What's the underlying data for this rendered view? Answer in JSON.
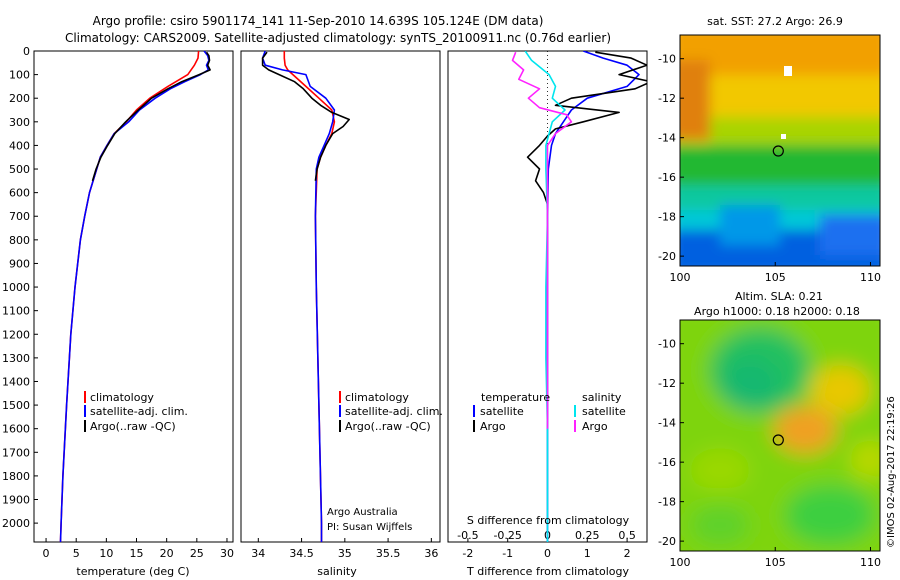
{
  "title": {
    "line1": "Argo profile: csiro 5901174_141 11-Sep-2010 14.639S 105.124E (DM data)",
    "line2": "Climatology: CARS2009. Satellite-adjusted climatology: synTS_20100911.nc (0.76d earlier)"
  },
  "colors": {
    "climatology": "#ff0000",
    "satellite": "#0000ff",
    "argo": "#000000",
    "sal_satellite": "#00e5ee",
    "sal_argo": "#ff22ff"
  },
  "chart_data": [
    {
      "type": "line",
      "id": "temperature",
      "xlabel": "temperature (deg C)",
      "ylabel": "",
      "xlim": [
        -2,
        31
      ],
      "ylim": [
        2080,
        0
      ],
      "xticks": [
        0,
        5,
        10,
        15,
        20,
        25,
        30
      ],
      "yticks": [
        0,
        100,
        200,
        300,
        400,
        500,
        600,
        700,
        800,
        900,
        1000,
        1100,
        1200,
        1300,
        1400,
        1500,
        1600,
        1700,
        1800,
        1900,
        2000
      ],
      "legend": [
        "climatology",
        "satellite-adj. clim.",
        "Argo(..raw -QC)"
      ],
      "series": [
        {
          "name": "climatology",
          "depth": [
            0,
            30,
            60,
            100,
            150,
            200,
            250,
            300,
            350,
            400,
            450,
            500,
            600,
            700,
            800,
            1000,
            1200,
            1500,
            1800,
            2000,
            2080
          ],
          "values": [
            25.3,
            25.2,
            24.6,
            23.5,
            20.2,
            17.2,
            15,
            13.3,
            11.3,
            10.1,
            9,
            8.4,
            7.2,
            6.4,
            5.7,
            4.8,
            4.1,
            3.4,
            2.8,
            2.5,
            2.4
          ]
        },
        {
          "name": "satellite-adj. clim.",
          "depth": [
            0,
            20,
            40,
            60,
            80,
            100,
            130,
            160,
            200,
            250,
            300,
            350,
            400,
            450,
            500,
            600,
            700,
            800,
            1000,
            1200,
            1500,
            1800,
            2000,
            2080
          ],
          "values": [
            26.2,
            26.8,
            27,
            26.6,
            26.9,
            25.6,
            23,
            20.6,
            18.1,
            15.5,
            13.7,
            11.3,
            10.1,
            9,
            8.4,
            7.2,
            6.4,
            5.7,
            4.8,
            4.1,
            3.4,
            2.8,
            2.5,
            2.4
          ]
        },
        {
          "name": "Argo(..raw -QC)",
          "depth": [
            5,
            20,
            40,
            60,
            80,
            100,
            130,
            160,
            200,
            250,
            300,
            350,
            400,
            450,
            500,
            550
          ],
          "values": [
            26.6,
            27,
            27.1,
            26.8,
            27.2,
            25.4,
            22.5,
            20.2,
            17.5,
            15.3,
            13.2,
            11.4,
            10.2,
            9.1,
            8.3,
            7.7
          ]
        }
      ]
    },
    {
      "type": "line",
      "id": "salinity",
      "xlabel": "salinity",
      "xlim": [
        33.8,
        36.1
      ],
      "ylim": [
        2080,
        0
      ],
      "xticks": [
        "34",
        "34.5",
        "35",
        "35.5",
        "36"
      ],
      "legend": [
        "climatology",
        "satellite-adj. clim.",
        "Argo(..raw -QC)"
      ],
      "annotation": [
        "Argo Australia",
        "PI: Susan Wijffels"
      ],
      "series": [
        {
          "name": "climatology",
          "depth": [
            0,
            30,
            60,
            80,
            100,
            150,
            200,
            250,
            300,
            350,
            400,
            450,
            500,
            700,
            1000,
            1500,
            2000,
            2080
          ],
          "values": [
            34.3,
            34.3,
            34.31,
            34.34,
            34.4,
            34.55,
            34.7,
            34.85,
            34.88,
            34.85,
            34.78,
            34.72,
            34.68,
            34.66,
            34.67,
            34.7,
            34.73,
            34.73
          ]
        },
        {
          "name": "satellite-adj. clim.",
          "depth": [
            0,
            30,
            60,
            80,
            100,
            150,
            200,
            250,
            300,
            350,
            400,
            450,
            500,
            700,
            1000,
            1500,
            2000,
            2080
          ],
          "values": [
            34.08,
            34.05,
            34.08,
            34.28,
            34.55,
            34.6,
            34.78,
            34.88,
            34.86,
            34.82,
            34.76,
            34.7,
            34.67,
            34.66,
            34.67,
            34.7,
            34.73,
            34.73
          ]
        },
        {
          "name": "Argo(..raw -QC)",
          "depth": [
            5,
            30,
            60,
            80,
            100,
            130,
            160,
            200,
            230,
            260,
            290,
            320,
            350,
            400,
            450,
            500,
            550
          ],
          "values": [
            34.1,
            34.05,
            34.05,
            34.12,
            34.24,
            34.42,
            34.52,
            34.62,
            34.72,
            34.85,
            35.05,
            34.98,
            34.86,
            34.78,
            34.72,
            34.68,
            34.66
          ]
        }
      ]
    },
    {
      "type": "line",
      "id": "differences",
      "xlabel": "T difference from climatology",
      "xlabel_top": "S difference from climatology",
      "xlim": [
        -2.5,
        2.5
      ],
      "ylim": [
        2080,
        0
      ],
      "xticks_bottom": [
        "-2",
        "-1",
        "0",
        "1",
        "2"
      ],
      "xticks_top": [
        "-0.5",
        "-0.25",
        "0",
        "0.25",
        "0.5"
      ],
      "legend_groups": {
        "temperature": [
          "satellite",
          "Argo"
        ],
        "salinity": [
          "satellite",
          "Argo"
        ]
      },
      "series": [
        {
          "name": "temperature satellite",
          "depth": [
            0,
            30,
            60,
            100,
            150,
            200,
            250,
            300,
            350,
            400,
            500,
            700,
            1000,
            1500,
            2000,
            2080
          ],
          "values": [
            0.9,
            1.4,
            2,
            2.3,
            2,
            1,
            0.6,
            0.4,
            0.2,
            0.1,
            0.02,
            0,
            0,
            0,
            0,
            0
          ]
        },
        {
          "name": "temperature Argo",
          "depth": [
            5,
            30,
            60,
            100,
            130,
            160,
            200,
            230,
            260,
            300,
            330,
            360,
            400,
            450,
            500,
            550,
            600,
            650
          ],
          "values": [
            1.2,
            2.1,
            2.5,
            1.8,
            2.6,
            2.2,
            0.6,
            0.2,
            1.8,
            0.9,
            0.2,
            0,
            -0.2,
            -0.5,
            -0.2,
            -0.3,
            -0.1,
            0
          ]
        },
        {
          "name": "salinity satellite",
          "depth": [
            0,
            40,
            100,
            150,
            200,
            250,
            300,
            400,
            500,
            700,
            1000,
            1300,
            1600,
            2000,
            2080
          ],
          "values": [
            -0.14,
            -0.1,
            0.01,
            0.05,
            0.03,
            0.11,
            0.03,
            -0.01,
            -0.01,
            0,
            -0.01,
            -0.01,
            0,
            0,
            0
          ]
        },
        {
          "name": "salinity Argo",
          "depth": [
            5,
            40,
            80,
            120,
            160,
            200,
            240,
            270,
            300,
            350,
            400,
            500,
            700,
            1000,
            1600
          ],
          "values": [
            -0.2,
            -0.22,
            -0.15,
            -0.18,
            -0.05,
            -0.12,
            -0.05,
            0.12,
            0.15,
            0.05,
            0,
            0,
            0,
            0,
            0
          ]
        }
      ]
    },
    {
      "type": "heatmap",
      "id": "sst-map",
      "title": "sat. SST: 27.2 Argo: 26.9",
      "xticks": [
        "100",
        "105",
        "110"
      ],
      "yticks": [
        "-10",
        "-12",
        "-14",
        "-16",
        "-18",
        "-20"
      ],
      "xlim": [
        100,
        110.5
      ],
      "ylim": [
        -20.5,
        -8.8
      ],
      "profile_location": [
        105.124,
        -14.639
      ]
    },
    {
      "type": "heatmap",
      "id": "sla-map",
      "title": "Altim. SLA: 0.21",
      "subtitle": "Argo h1000: 0.18 h2000: 0.18",
      "xticks": [
        "100",
        "105",
        "110"
      ],
      "yticks": [
        "-10",
        "-12",
        "-14",
        "-16",
        "-18",
        "-20"
      ],
      "xlim": [
        100,
        110.5
      ],
      "ylim": [
        -20.5,
        -8.8
      ],
      "profile_location": [
        105.124,
        -14.639
      ]
    }
  ],
  "side_label": "©IMOS 02-Aug-2017 22:19:26"
}
